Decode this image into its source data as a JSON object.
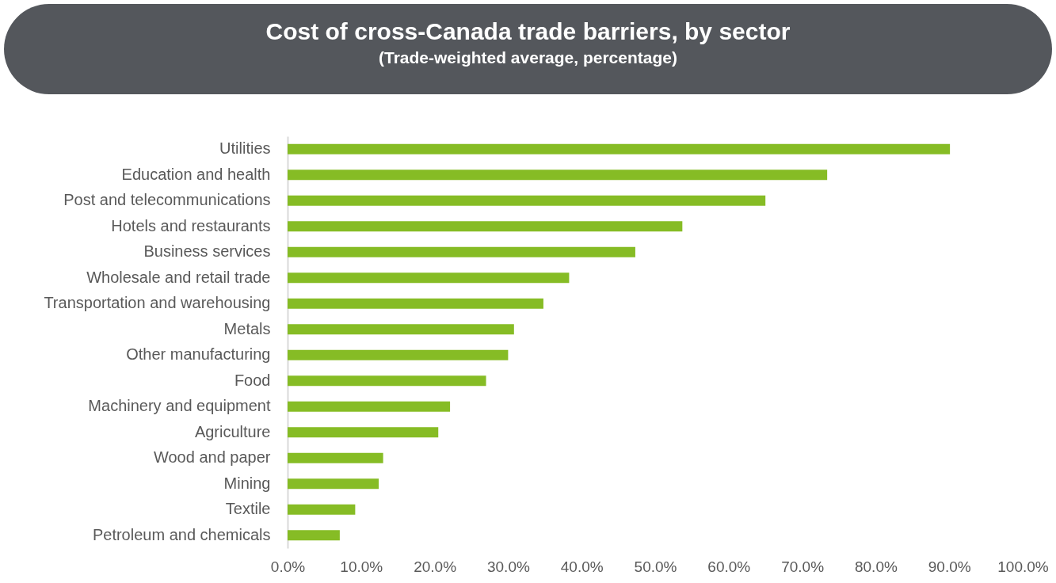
{
  "chart_data": {
    "type": "bar",
    "orientation": "horizontal",
    "title": "Cost of cross-Canada trade barriers, by sector",
    "subtitle": "(Trade-weighted average, percentage)",
    "categories": [
      "Utilities",
      "Education and health",
      "Post and telecommunications",
      "Hotels and restaurants",
      "Business services",
      "Wholesale and retail trade",
      "Transportation and warehousing",
      "Metals",
      "Other manufacturing",
      "Food",
      "Machinery and equipment",
      "Agriculture",
      "Wood and paper",
      "Mining",
      "Textile",
      "Petroleum and chemicals"
    ],
    "values": [
      90.1,
      73.4,
      65.0,
      53.7,
      47.3,
      38.3,
      34.8,
      30.8,
      30.0,
      27.0,
      22.1,
      20.5,
      13.0,
      12.4,
      9.2,
      7.1
    ],
    "color": "#86bc25",
    "xlim": [
      0,
      100
    ],
    "xticks": [
      {
        "value": 0,
        "label": "0.0%"
      },
      {
        "value": 10,
        "label": "10.0%"
      },
      {
        "value": 20,
        "label": "20.0%"
      },
      {
        "value": 30,
        "label": "30.0%"
      },
      {
        "value": 40,
        "label": "40.0%"
      },
      {
        "value": 50,
        "label": "50.0%"
      },
      {
        "value": 60,
        "label": "60.0%"
      },
      {
        "value": 70,
        "label": "70.0%"
      },
      {
        "value": 80,
        "label": "80.0%"
      },
      {
        "value": 90,
        "label": "90.0%"
      },
      {
        "value": 100,
        "label": "100.0%"
      }
    ],
    "grid": false
  }
}
